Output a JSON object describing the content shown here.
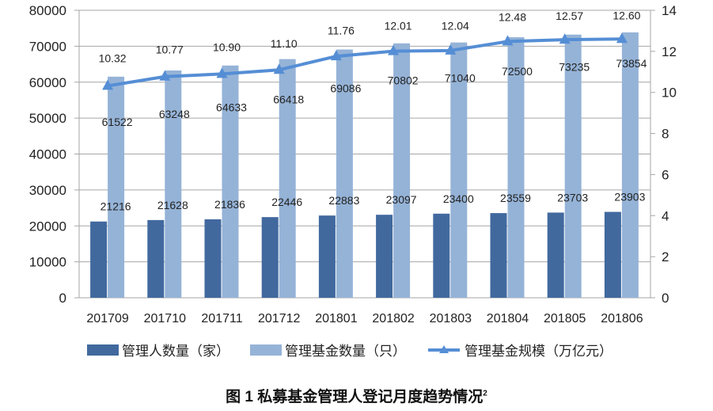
{
  "chart_data": {
    "type": "bar+line",
    "title": "",
    "caption": "图 1  私募基金管理人登记月度趋势情况",
    "caption_footnote": "2",
    "categories": [
      "201709",
      "201710",
      "201711",
      "201712",
      "201801",
      "201802",
      "201803",
      "201804",
      "201805",
      "201806"
    ],
    "series": [
      {
        "name": "管理人数量（家）",
        "type": "bar",
        "axis": "left",
        "color": "#41699E",
        "values": [
          21216,
          21628,
          21836,
          22446,
          22883,
          23097,
          23400,
          23559,
          23703,
          23903
        ]
      },
      {
        "name": "管理基金数量（只）",
        "type": "bar",
        "axis": "left",
        "color": "#95B3D7",
        "values": [
          61522,
          63248,
          64633,
          66418,
          69086,
          70802,
          71040,
          72500,
          73235,
          73854
        ]
      },
      {
        "name": "管理基金规模（万亿元）",
        "type": "line",
        "axis": "right",
        "color": "#558ED5",
        "marker": "triangle",
        "values": [
          10.32,
          10.77,
          10.9,
          11.1,
          11.76,
          12.01,
          12.04,
          12.48,
          12.57,
          12.6
        ],
        "labels": [
          "10.32",
          "10.77",
          "10.90",
          "11.10",
          "11.76",
          "12.01",
          "12.04",
          "12.48",
          "12.57",
          "12.60"
        ]
      }
    ],
    "left_axis": {
      "ylim": [
        0,
        80000
      ],
      "ticks": [
        0,
        10000,
        20000,
        30000,
        40000,
        50000,
        60000,
        70000,
        80000
      ]
    },
    "right_axis": {
      "ylim": [
        0,
        14
      ],
      "ticks": [
        0,
        2,
        4,
        6,
        8,
        10,
        12,
        14
      ]
    },
    "grid": true,
    "legend": "bottom"
  }
}
